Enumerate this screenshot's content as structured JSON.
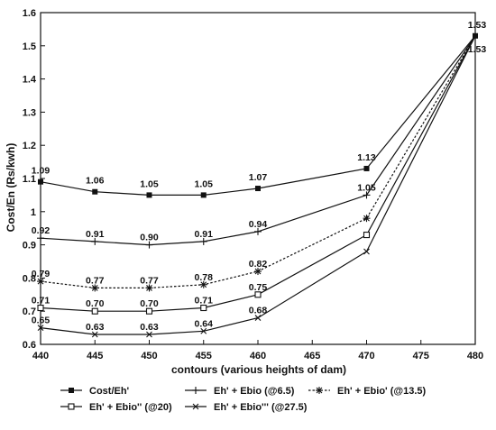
{
  "chart_data": {
    "type": "line",
    "xlabel": "contours (various heights of dam)",
    "ylabel": "Cost/En (Rs/kwh)",
    "xlim": [
      440,
      480
    ],
    "ylim": [
      0.6,
      1.6
    ],
    "xticks": [
      440,
      445,
      450,
      455,
      460,
      465,
      470,
      475,
      480
    ],
    "yticks": [
      0.6,
      0.7,
      0.8,
      0.9,
      1,
      1.1,
      1.2,
      1.3,
      1.4,
      1.5,
      1.6
    ],
    "ytick_labels": [
      "0.6",
      "0.7",
      "0.8",
      "0.9",
      "1",
      "1.1",
      "1.2",
      "1.3",
      "1.4",
      "1.5",
      "1.6"
    ],
    "grid": false,
    "legend_position": "bottom",
    "series": [
      {
        "name": "Cost/Eh'",
        "marker": "filled-square",
        "dash": "solid",
        "x": [
          440,
          445,
          450,
          455,
          460,
          470,
          480
        ],
        "values": [
          1.09,
          1.06,
          1.05,
          1.05,
          1.07,
          1.13,
          1.53
        ],
        "labels": [
          "1.09",
          "1.06",
          "1.05",
          "1.05",
          "1.07",
          "1.13",
          "1.53"
        ]
      },
      {
        "name": "Eh' + Ebio (@6.5)",
        "marker": "plus",
        "dash": "solid",
        "x": [
          440,
          445,
          450,
          455,
          460,
          470,
          480
        ],
        "values": [
          0.92,
          0.91,
          0.9,
          0.91,
          0.94,
          1.05,
          1.53
        ],
        "labels": [
          "0.92",
          "0.91",
          "0.90",
          "0.91",
          "0.94",
          "1.05",
          "1.53"
        ]
      },
      {
        "name": "Eh' + Ebio' (@13.5)",
        "marker": "asterisk",
        "dash": "dotted",
        "x": [
          440,
          445,
          450,
          455,
          460,
          470,
          480
        ],
        "values": [
          0.79,
          0.77,
          0.77,
          0.78,
          0.82,
          0.98,
          1.53
        ],
        "labels": [
          "0.79",
          "0.77",
          "0.77",
          "0.78",
          "0.82",
          "",
          ""
        ]
      },
      {
        "name": "Eh' + Ebio'' (@20)",
        "marker": "open-square",
        "dash": "solid",
        "x": [
          440,
          445,
          450,
          455,
          460,
          470,
          480
        ],
        "values": [
          0.71,
          0.7,
          0.7,
          0.71,
          0.75,
          0.93,
          1.53
        ],
        "labels": [
          "0.71",
          "0.70",
          "0.70",
          "0.71",
          "0.75",
          "",
          ""
        ]
      },
      {
        "name": "Eh' + Ebio''' (@27.5)",
        "marker": "cross",
        "dash": "solid",
        "x": [
          440,
          445,
          450,
          455,
          460,
          470,
          480
        ],
        "values": [
          0.65,
          0.63,
          0.63,
          0.64,
          0.68,
          0.88,
          1.53
        ],
        "labels": [
          "0.65",
          "0.63",
          "0.63",
          "0.64",
          "0.68",
          "",
          ""
        ]
      }
    ]
  }
}
